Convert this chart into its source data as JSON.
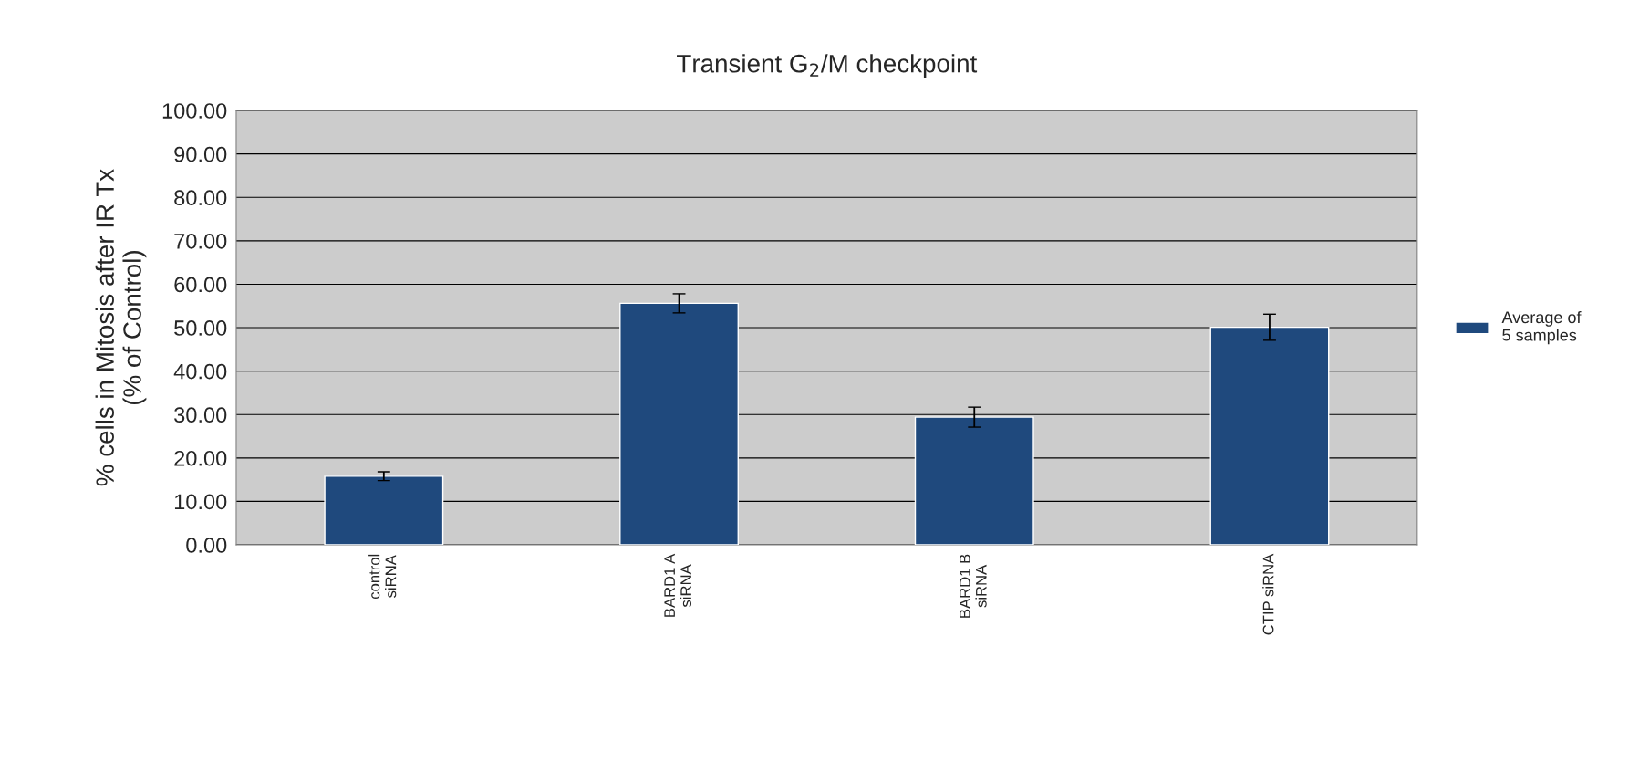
{
  "chart_data": {
    "type": "bar",
    "title": "Transient G$_{2}$/M checkpoint",
    "ylabel": "% cells in Mitosis after IR Tx\n(% of Control)",
    "categories": [
      "control\nsiRNA",
      "BARD1 A\nsiRNA",
      "BARD1 B\nsiRNA",
      "CTIP siRNA"
    ],
    "series": [
      {
        "name": "Average of\n5 samples",
        "color": "#1f497d",
        "values": [
          15.8,
          55.6,
          29.4,
          50.1
        ],
        "errors": [
          1.0,
          2.2,
          2.3,
          3.0
        ]
      }
    ],
    "ylim": [
      0,
      100
    ],
    "yticks": [
      {
        "value": 0,
        "label": "0.00"
      },
      {
        "value": 10,
        "label": "10.00"
      },
      {
        "value": 20,
        "label": "20.00"
      },
      {
        "value": 30,
        "label": "30.00"
      },
      {
        "value": 40,
        "label": "40.00"
      },
      {
        "value": 50,
        "label": "50.00"
      },
      {
        "value": 60,
        "label": "60.00"
      },
      {
        "value": 70,
        "label": "70.00"
      },
      {
        "value": 80,
        "label": "80.00"
      },
      {
        "value": 90,
        "label": "90.00"
      },
      {
        "value": 100,
        "label": "100.00"
      }
    ],
    "grid": "y",
    "legend": "right"
  }
}
